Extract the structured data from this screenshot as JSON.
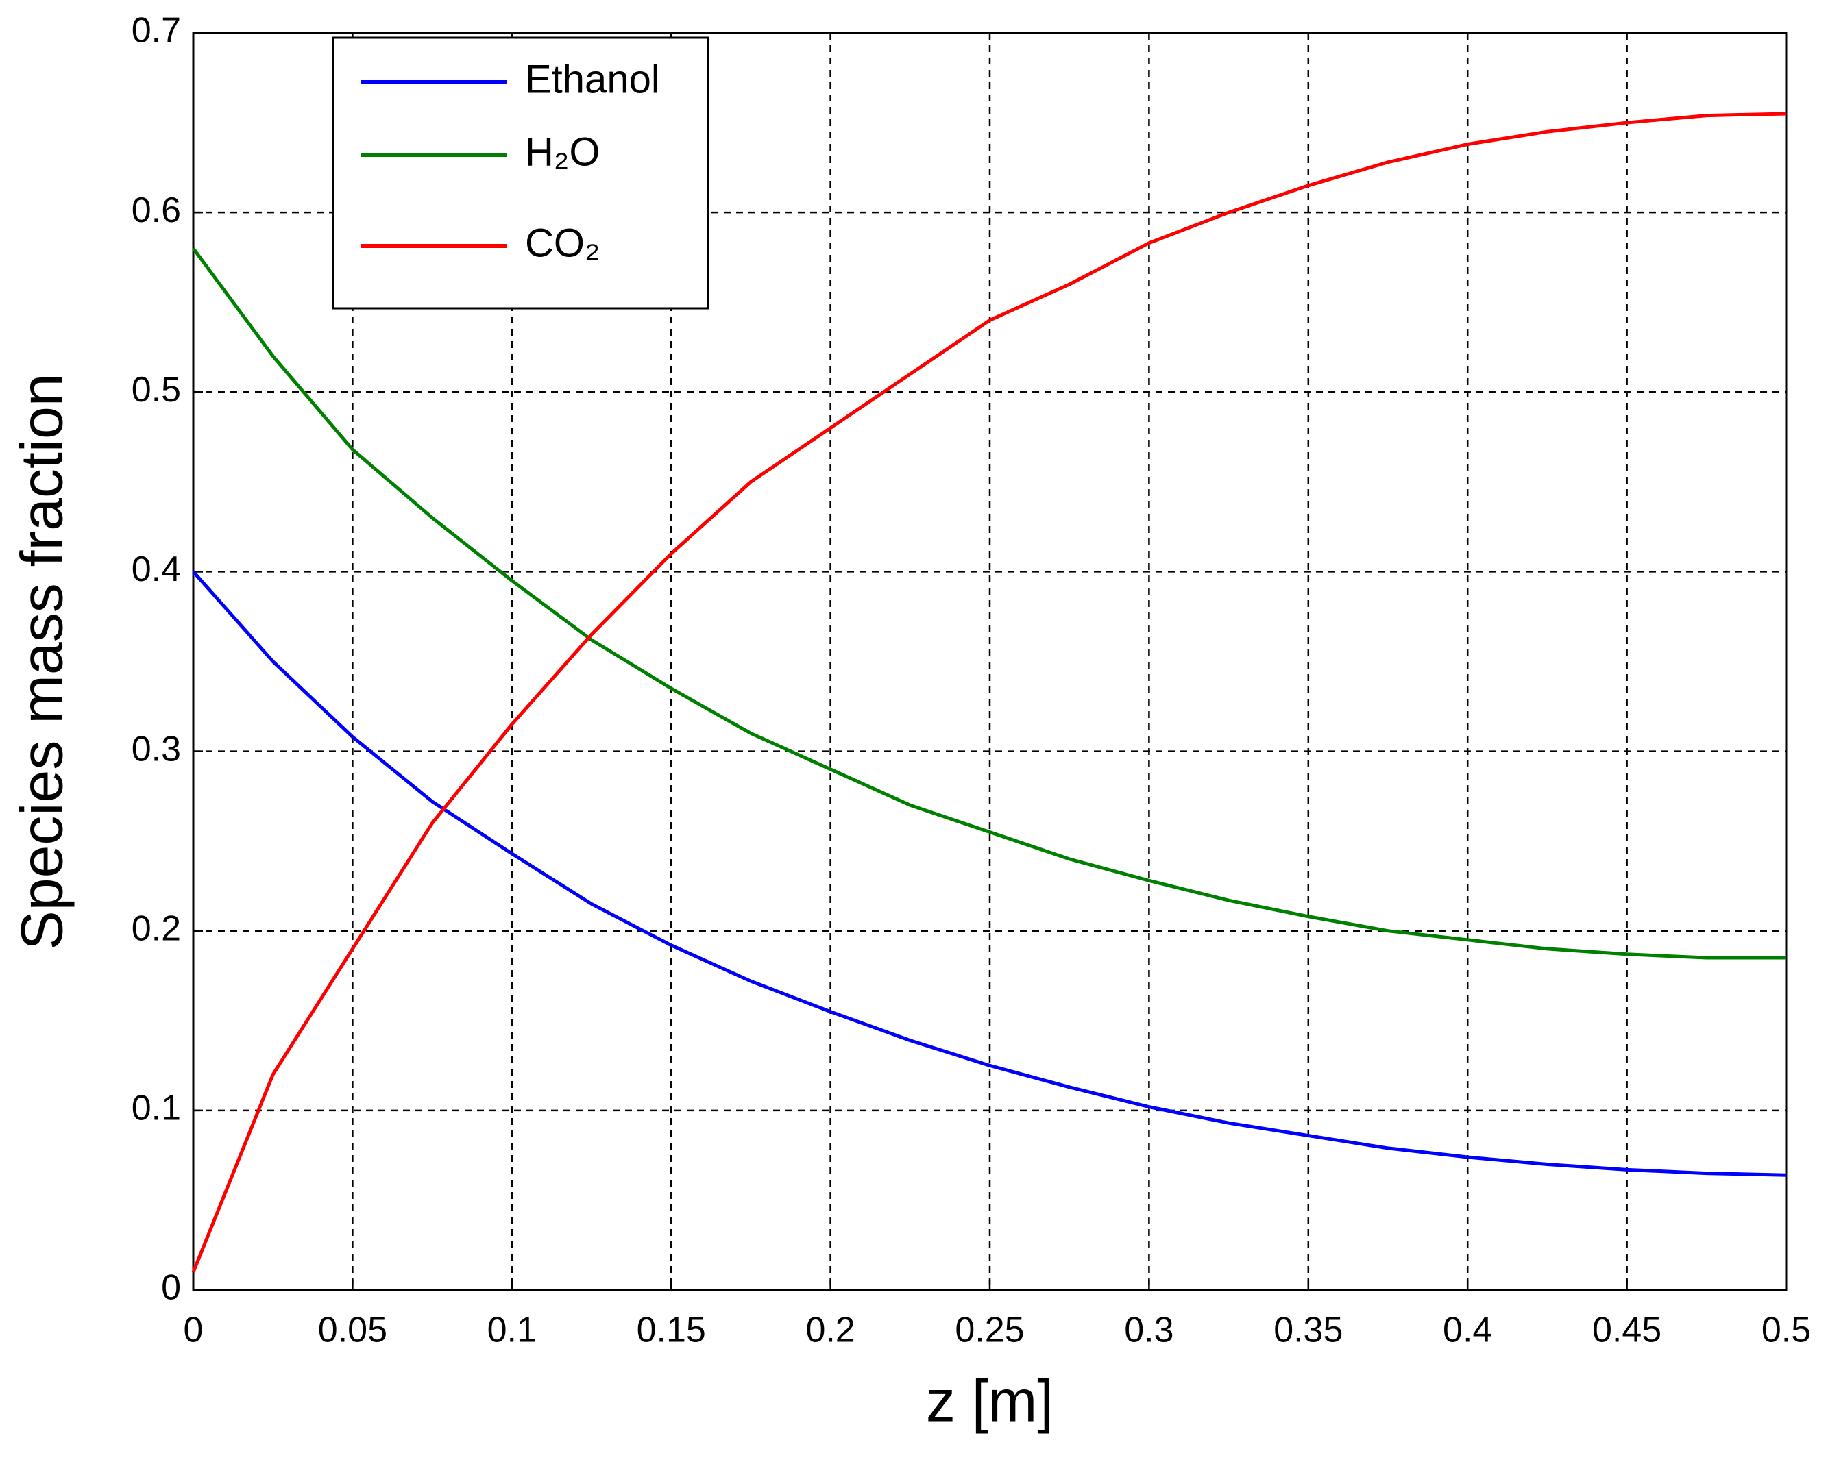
{
  "chart_data": {
    "type": "line",
    "x_label": "z [m]",
    "y_label": "Species mass fraction",
    "x": [
      0,
      0.025,
      0.05,
      0.075,
      0.1,
      0.125,
      0.15,
      0.175,
      0.2,
      0.225,
      0.25,
      0.275,
      0.3,
      0.325,
      0.35,
      0.375,
      0.4,
      0.425,
      0.45,
      0.475,
      0.5
    ],
    "series": [
      {
        "name": "Ethanol",
        "color": "#0000ff",
        "values": [
          0.4,
          0.35,
          0.308,
          0.272,
          0.243,
          0.215,
          0.192,
          0.172,
          0.155,
          0.139,
          0.125,
          0.113,
          0.102,
          0.093,
          0.086,
          0.079,
          0.074,
          0.07,
          0.067,
          0.065,
          0.064
        ]
      },
      {
        "name": "H₂O",
        "color": "#008000",
        "values": [
          0.58,
          0.52,
          0.468,
          0.43,
          0.395,
          0.362,
          0.335,
          0.31,
          0.29,
          0.27,
          0.255,
          0.24,
          0.228,
          0.217,
          0.208,
          0.2,
          0.195,
          0.19,
          0.187,
          0.185,
          0.185
        ]
      },
      {
        "name": "CO₂",
        "color": "#ff0000",
        "values": [
          0.01,
          0.12,
          0.19,
          0.26,
          0.315,
          0.365,
          0.41,
          0.45,
          0.48,
          0.51,
          0.54,
          0.56,
          0.583,
          0.6,
          0.615,
          0.628,
          0.638,
          0.645,
          0.65,
          0.654,
          0.655
        ]
      }
    ],
    "xlim": [
      0,
      0.5
    ],
    "xticks": [
      0,
      0.05,
      0.1,
      0.15,
      0.2,
      0.25,
      0.3,
      0.35,
      0.4,
      0.45,
      0.5
    ],
    "ylim": [
      0,
      0.7
    ],
    "yticks": [
      0,
      0.1,
      0.2,
      0.3,
      0.4,
      0.5,
      0.6,
      0.7
    ],
    "grid": true,
    "legend": "upper-left"
  }
}
